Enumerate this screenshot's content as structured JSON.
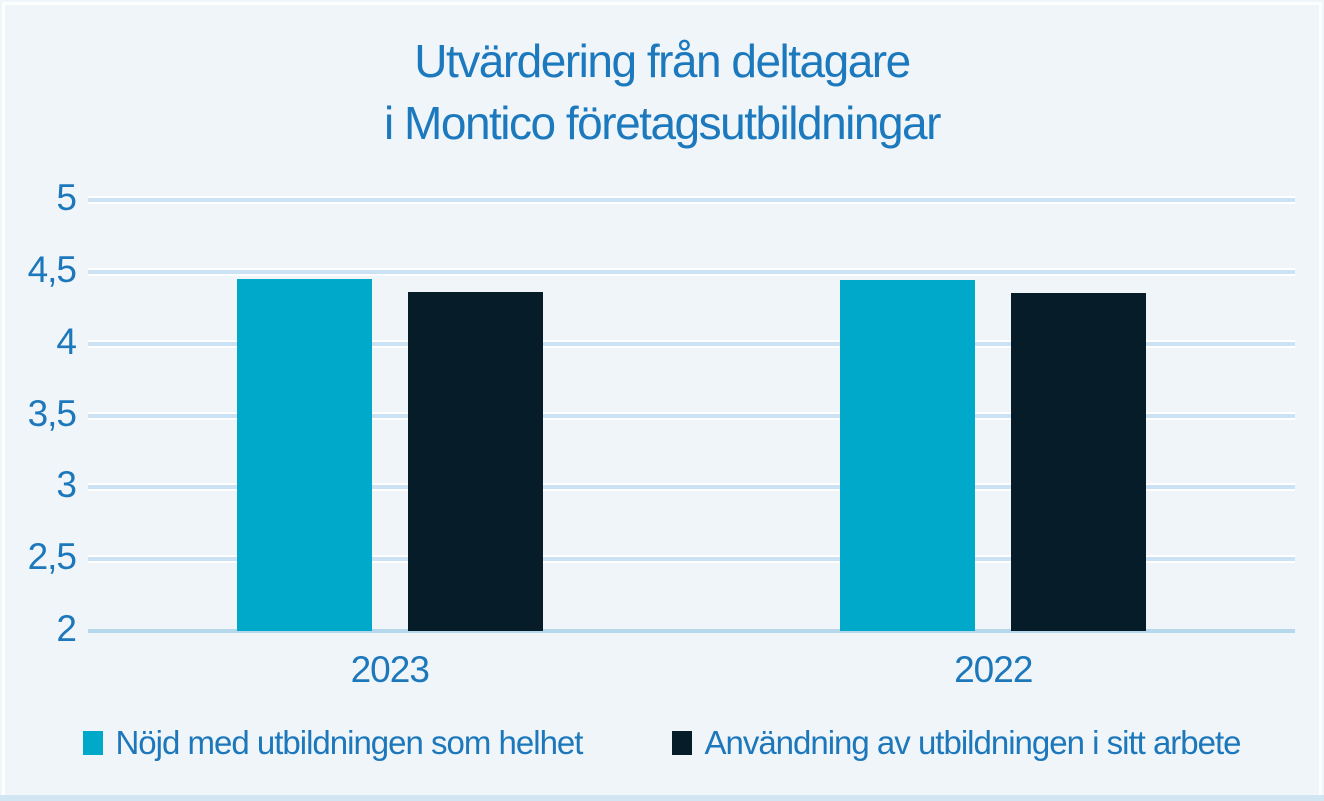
{
  "title": {
    "line1": "Utvärdering från deltagare",
    "line2": "i Montico företagsutbildningar"
  },
  "colors": {
    "background": "#eff5f9",
    "title_text": "#1d79bd",
    "axis_text": "#1c77bb",
    "gridline": "#cbe2f4",
    "baseline": "#b5d8ec",
    "series1": "#00a9c9",
    "series2": "#061c29"
  },
  "chart_data": {
    "type": "bar",
    "title": "Utvärdering från deltagare i Montico företagsutbildningar",
    "categories": [
      "2023",
      "2022"
    ],
    "series": [
      {
        "name": "Nöjd med utbildningen som helhet",
        "color": "#00a9c9",
        "values": [
          4.45,
          4.44
        ]
      },
      {
        "name": "Användning av utbildningen i sitt arbete",
        "color": "#061c29",
        "values": [
          4.36,
          4.35
        ]
      }
    ],
    "ylim": [
      2,
      5
    ],
    "yticks": [
      {
        "value": 5,
        "label": "5"
      },
      {
        "value": 4.5,
        "label": "4,5"
      },
      {
        "value": 4,
        "label": "4"
      },
      {
        "value": 3.5,
        "label": "3,5"
      },
      {
        "value": 3,
        "label": "3"
      },
      {
        "value": 2.5,
        "label": "2,5"
      },
      {
        "value": 2,
        "label": "2"
      }
    ],
    "xlabel": "",
    "ylabel": "",
    "grid": "horizontal",
    "legend_position": "bottom",
    "decimal_separator": ","
  }
}
